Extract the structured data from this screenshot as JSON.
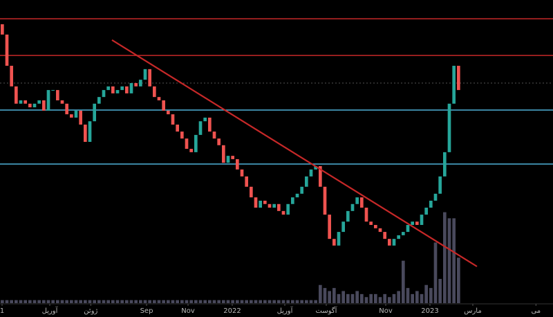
{
  "chart_data": {
    "type": "candlestick",
    "up_color": "#26a69a",
    "down_color": "#ef5350",
    "volume_color": "#7a7a9a",
    "xlim": [
      0,
      120
    ],
    "ylim": [
      0,
      100
    ],
    "y2lim": [
      0,
      100
    ],
    "xticks": [
      {
        "value": 0.45,
        "label": "1"
      },
      {
        "value": 10.8,
        "label": "آوریل"
      },
      {
        "value": 19.7,
        "label": "ژوئن"
      },
      {
        "value": 31.8,
        "label": "Sep"
      },
      {
        "value": 40.8,
        "label": "Nov"
      },
      {
        "value": 50.4,
        "label": "2022"
      },
      {
        "value": 61.8,
        "label": "آوریل"
      },
      {
        "value": 70.8,
        "label": "آگوست"
      },
      {
        "value": 83.7,
        "label": "Nov"
      },
      {
        "value": 93.3,
        "label": "2023"
      },
      {
        "value": 102.6,
        "label": "مارس"
      },
      {
        "value": 116.3,
        "label": "می"
      }
    ],
    "open": [
      92,
      88.6,
      78.3,
      71.5,
      65.8,
      66.9,
      65.8,
      64.6,
      65.8,
      66.9,
      63.5,
      70.3,
      70.3,
      66.9,
      65.8,
      62.3,
      61.2,
      63.5,
      58.9,
      53.2,
      60.0,
      65.8,
      68.0,
      70.3,
      71.5,
      69.2,
      70.3,
      71.5,
      69.2,
      72.6,
      71.5,
      73.7,
      77.2,
      71.5,
      68.0,
      66.9,
      63.5,
      62.3,
      58.9,
      56.6,
      54.3,
      50.9,
      49.8,
      55.5,
      60.0,
      61.2,
      56.6,
      54.3,
      52.1,
      46.3,
      48.6,
      47.5,
      44.1,
      41.8,
      38.4,
      34.9,
      31.5,
      33.8,
      32.7,
      31.5,
      32.7,
      30.4,
      29.2,
      32.7,
      34.9,
      36.1,
      38.4,
      41.8,
      44.1,
      45.2,
      38.4,
      29.2,
      21.2,
      19.0,
      23.5,
      26.9,
      30.4,
      32.7,
      34.9,
      31.5,
      26.9,
      25.8,
      24.7,
      23.5,
      21.2,
      19.0,
      21.2,
      22.4,
      23.5,
      25.8,
      26.9,
      25.8,
      29.2,
      31.5,
      33.8,
      36.1,
      41.8,
      49.8,
      65.8,
      78.3
    ],
    "close": [
      88.6,
      78.3,
      71.5,
      65.8,
      66.9,
      65.8,
      64.6,
      65.8,
      66.9,
      63.5,
      70.3,
      70.3,
      66.9,
      65.8,
      62.3,
      61.2,
      63.5,
      58.9,
      53.2,
      60.0,
      65.8,
      68.0,
      70.3,
      71.5,
      69.2,
      70.3,
      71.5,
      69.2,
      72.6,
      71.5,
      73.7,
      77.2,
      71.5,
      68.0,
      66.9,
      63.5,
      62.3,
      58.9,
      56.6,
      54.3,
      50.9,
      49.8,
      55.5,
      60.0,
      61.2,
      56.6,
      54.3,
      52.1,
      46.3,
      48.6,
      47.5,
      44.1,
      41.8,
      38.4,
      34.9,
      31.5,
      33.8,
      32.7,
      31.5,
      32.7,
      30.4,
      29.2,
      32.7,
      34.9,
      36.1,
      38.4,
      41.8,
      44.1,
      45.2,
      38.4,
      29.2,
      21.2,
      19.0,
      23.5,
      26.9,
      30.4,
      32.7,
      34.9,
      31.5,
      26.9,
      25.8,
      24.7,
      23.5,
      21.2,
      19.0,
      21.2,
      22.4,
      23.5,
      25.8,
      26.9,
      25.8,
      29.2,
      31.5,
      33.8,
      36.1,
      41.8,
      49.8,
      65.8,
      78.3,
      70.3
    ],
    "volume": [
      1,
      1,
      1,
      1,
      1,
      1,
      1,
      1,
      1,
      1,
      1,
      1,
      1,
      1,
      1,
      1,
      1,
      1,
      1,
      1,
      1,
      1,
      1,
      1,
      1,
      1,
      1,
      1,
      1,
      1,
      1,
      1,
      1,
      1,
      1,
      1,
      1,
      1,
      1,
      1,
      1,
      1,
      1,
      1,
      1,
      1,
      1,
      1,
      1,
      1,
      1,
      1,
      1,
      1,
      1,
      1,
      1,
      1,
      1,
      1,
      1,
      1,
      1,
      1,
      1,
      1,
      1,
      1,
      1,
      6,
      5,
      4,
      5,
      3,
      4,
      3,
      3,
      4,
      3,
      2,
      3,
      3,
      2,
      3,
      2,
      3,
      4,
      14,
      5,
      3,
      4,
      3,
      6,
      5,
      20,
      8,
      30,
      28,
      28,
      15
    ],
    "levels": [
      {
        "value": 93.8,
        "color": "#c62828",
        "dash": false
      },
      {
        "value": 81.7,
        "color": "#c62828",
        "dash": false
      },
      {
        "value": 72.6,
        "color": "#555555",
        "dash": true
      },
      {
        "value": 63.7,
        "color": "#4fb3d9",
        "dash": false
      },
      {
        "value": 45.9,
        "color": "#4fb3d9",
        "dash": false
      }
    ],
    "trendline": {
      "x": [
        24.3,
        103.5
      ],
      "values": [
        86.8,
        12.1
      ],
      "color": "#c62828"
    }
  }
}
